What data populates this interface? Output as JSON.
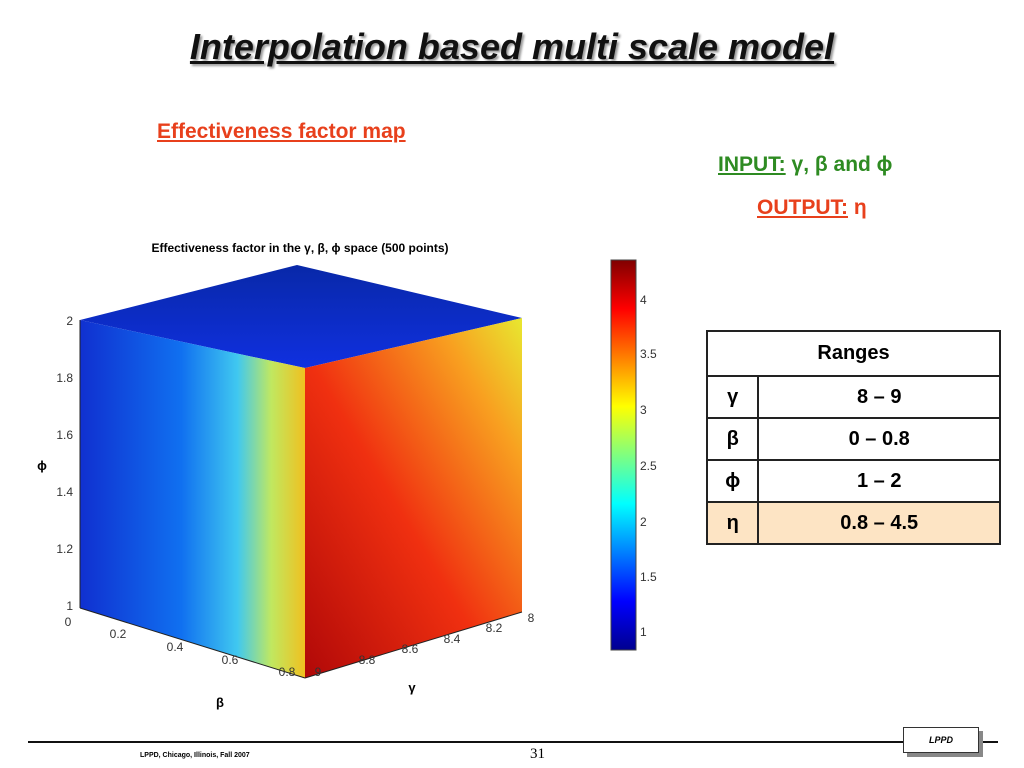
{
  "title": "Interpolation based multi scale model",
  "subtitle": "Effectiveness factor map",
  "io": {
    "input_label": "INPUT:",
    "input_text": "γ, β and ϕ",
    "output_label": "OUTPUT:",
    "output_text": "η"
  },
  "figure": {
    "title": "Effectiveness factor in the γ, β, ϕ space (500 points)",
    "z_label": "ϕ",
    "x_label": "β",
    "y_label": "γ",
    "z_ticks": [
      "1",
      "1.2",
      "1.4",
      "1.6",
      "1.8",
      "2"
    ],
    "x_ticks": [
      "0",
      "0.2",
      "0.4",
      "0.6",
      "0.8"
    ],
    "y_ticks": [
      "9",
      "8.8",
      "8.6",
      "8.4",
      "8.2",
      "8"
    ],
    "colorbar_ticks": [
      "1",
      "1.5",
      "2",
      "2.5",
      "3",
      "3.5",
      "4"
    ]
  },
  "table": {
    "header": "Ranges",
    "rows": [
      [
        "γ",
        "8 – 9"
      ],
      [
        "β",
        "0 – 0.8"
      ],
      [
        "ϕ",
        "1 – 2"
      ],
      [
        "η",
        "0.8 – 4.5"
      ]
    ]
  },
  "footer": {
    "left": "LPPD, Chicago, Illinois, Fall 2007",
    "page": "31",
    "logo": "LPPD"
  }
}
